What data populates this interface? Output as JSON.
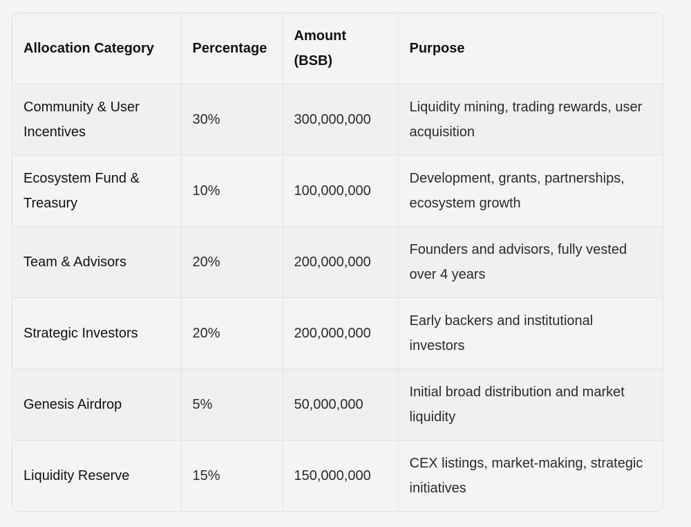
{
  "table": {
    "headers": [
      "Allocation Category",
      "Percentage",
      "Amount (BSB)",
      "Purpose"
    ],
    "rows": [
      [
        "Community & User Incentives",
        "30%",
        "300,000,000",
        "Liquidity mining, trading rewards, user acquisition"
      ],
      [
        "Ecosystem Fund & Treasury",
        "10%",
        "100,000,000",
        "Development, grants, partnerships, ecosystem growth"
      ],
      [
        "Team & Advisors",
        "20%",
        "200,000,000",
        "Founders and advisors, fully vested over 4 years"
      ],
      [
        "Strategic Investors",
        "20%",
        "200,000,000",
        "Early backers and institutional investors"
      ],
      [
        "Genesis Airdrop",
        "5%",
        "50,000,000",
        "Initial broad distribution and market liquidity"
      ],
      [
        "Liquidity Reserve",
        "15%",
        "150,000,000",
        "CEX listings, market-making, strategic initiatives"
      ]
    ]
  }
}
